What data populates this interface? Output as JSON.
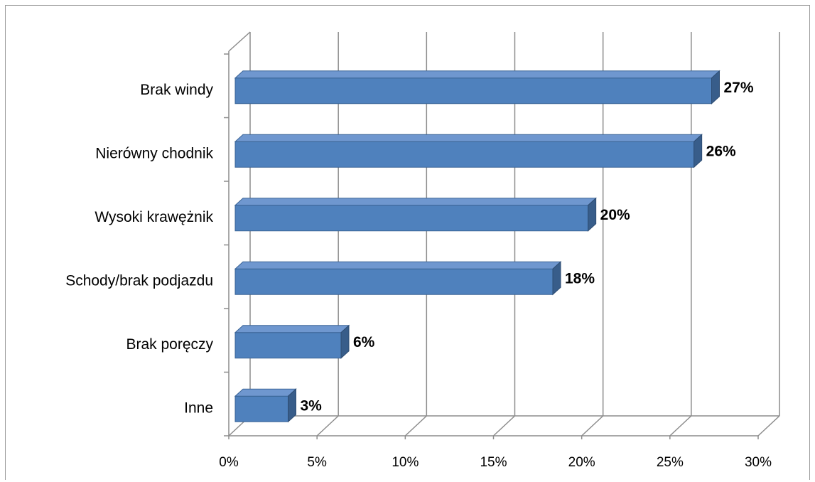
{
  "chart_data": {
    "type": "bar",
    "orientation": "horizontal",
    "style": "3d",
    "categories": [
      "Brak windy",
      "Nierówny chodnik",
      "Wysoki krawężnik",
      "Schody/brak podjazdu",
      "Brak poręczy",
      "Inne"
    ],
    "values": [
      27,
      26,
      20,
      18,
      6,
      3
    ],
    "data_labels": [
      "27%",
      "26%",
      "20%",
      "18%",
      "6%",
      "3%"
    ],
    "x_ticks": [
      "0%",
      "5%",
      "10%",
      "15%",
      "20%",
      "25%",
      "30%"
    ],
    "xlim": [
      0,
      30
    ],
    "title": "",
    "xlabel": "",
    "ylabel": "",
    "grid": true,
    "legend": "none",
    "colors": {
      "bar_front": "#4f81bd",
      "bar_top": "#6f97cf",
      "bar_side": "#385d8a",
      "grid": "#8c8c8c",
      "frame": "#9a9a9a"
    }
  }
}
